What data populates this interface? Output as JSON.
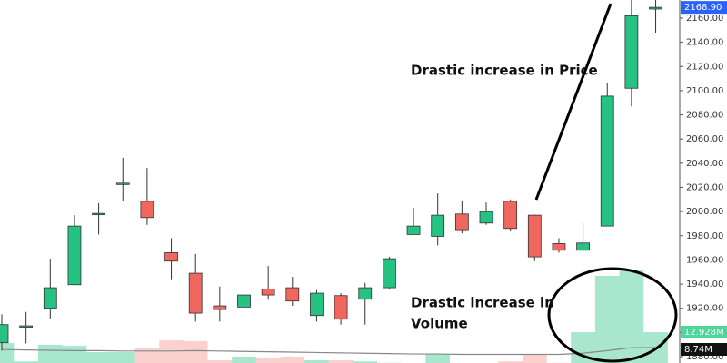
{
  "chart_data": {
    "type": "candlestick",
    "open": [
      1891.5,
      1905,
      1920,
      1939.5,
      1998,
      2023.5,
      2008.5,
      1966,
      1949,
      1922,
      1921,
      1936,
      1937,
      1914,
      1930.5,
      1927.5,
      1937,
      1981,
      1979.5,
      1998,
      1990.5,
      2008.5,
      1997,
      1973.5,
      1968,
      1988,
      2102,
      2167.5
    ],
    "high": [
      1915,
      1917,
      1961,
      1997,
      2007,
      2044.5,
      2036,
      1978,
      1965,
      1938,
      1938,
      1955,
      1946,
      1935,
      1932.5,
      1941,
      1962.5,
      2003,
      2015,
      2008.5,
      2007.5,
      2010,
      1997.5,
      1978,
      1990.5,
      2106,
      2175,
      2175
    ],
    "low": [
      1885,
      1891,
      1911,
      1939.5,
      1981,
      2008.5,
      1989,
      1944,
      1909,
      1909,
      1907,
      1927,
      1922,
      1909,
      1906.5,
      1906.5,
      1936,
      1981,
      1972,
      1982,
      1989,
      1984,
      1959,
      1966,
      1967,
      1988,
      2087,
      2148
    ],
    "close": [
      1906.5,
      1905.5,
      1937,
      1988,
      1998.5,
      2023.5,
      1995,
      1959,
      1916,
      1919,
      1931,
      1931,
      1926,
      1932.5,
      1911,
      1937,
      1961,
      1988,
      1997,
      1985,
      2000,
      1986,
      1962.5,
      1968,
      1974,
      2095.5,
      2162,
      2168.9
    ],
    "up_color": "#26c281",
    "down_color": "#f0675f",
    "ylim": [
      1874.75,
      2175
    ],
    "yticks": [
      {
        "value": 2160,
        "label": "2160.00"
      },
      {
        "value": 2140,
        "label": "2140.00"
      },
      {
        "value": 2120,
        "label": "2120.00"
      },
      {
        "value": 2100,
        "label": "2100.00"
      },
      {
        "value": 2080,
        "label": "2080.00"
      },
      {
        "value": 2060,
        "label": "2060.00"
      },
      {
        "value": 2040,
        "label": "2040.00"
      },
      {
        "value": 2020,
        "label": "2020.00"
      },
      {
        "value": 2000,
        "label": "2000.00"
      },
      {
        "value": 1980,
        "label": "1980.00"
      },
      {
        "value": 1960,
        "label": "1960.00"
      },
      {
        "value": 1940,
        "label": "1940.00"
      },
      {
        "value": 1920,
        "label": "1920.00"
      },
      {
        "value": 1900,
        "label": "1900.00"
      },
      {
        "value": 1880,
        "label": "1880.00"
      }
    ],
    "volume": [
      10,
      5,
      9.5,
      9.2,
      7.5,
      7.5,
      8.7,
      10.7,
      10.5,
      5.3,
      6.3,
      5.8,
      6.3,
      5.3,
      5.3,
      5,
      4.6,
      4.1,
      7,
      3.8,
      3.3,
      5,
      7,
      4.6,
      12.9,
      28.2,
      29.9,
      12.928
    ],
    "volume_ma": [
      8.2,
      8.1,
      8.0,
      7.9,
      7.9,
      7.8,
      7.8,
      7.8,
      7.9,
      7.8,
      7.7,
      7.6,
      7.5,
      7.4,
      7.3,
      7.2,
      7.1,
      7.0,
      7.0,
      6.9,
      6.9,
      6.9,
      6.9,
      6.9,
      7.2,
      7.9,
      8.7,
      8.74
    ],
    "volume_lim": [
      0,
      103
    ],
    "price_label": {
      "value": 2168.9,
      "label": "2168.90"
    },
    "volume_label": {
      "value": 12.928,
      "label": "12.928M"
    },
    "ma_label": {
      "value": 8.74,
      "label": "8.74M"
    },
    "annotations": [
      "Drastic increase in Price",
      "Drastic increase in",
      "Volume"
    ]
  }
}
